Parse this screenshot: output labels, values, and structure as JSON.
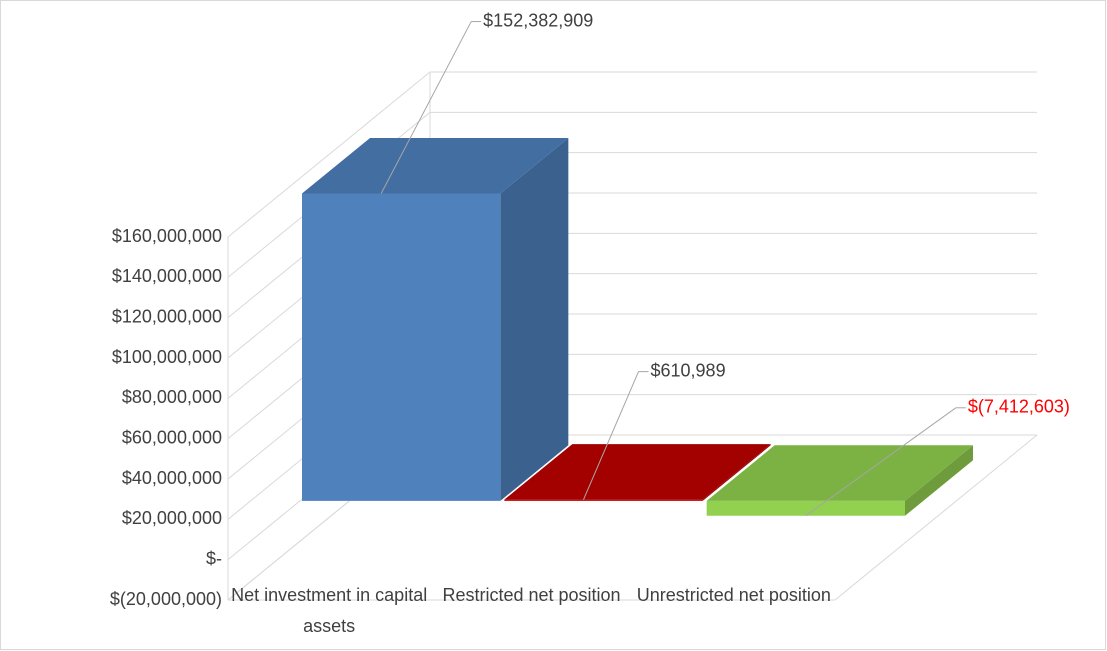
{
  "chart_data": {
    "type": "bar3d",
    "categories": [
      "Net investment in capital assets",
      "Restricted net position",
      "Unrestricted net position"
    ],
    "series": [
      {
        "name": null,
        "values": [
          152382909,
          610989,
          -7412603
        ],
        "value_labels": [
          "$152,382,909",
          "$610,989",
          "$(7,412,603)"
        ],
        "colors": [
          "#4f81bd",
          "#c00000",
          "#92d050"
        ]
      }
    ],
    "negative_label_color": "#ff0000",
    "ylim": [
      -20000000,
      160000000
    ],
    "yticks": [
      {
        "value": -20000000,
        "label": "$(20,000,000)"
      },
      {
        "value": 0,
        "label": "$-"
      },
      {
        "value": 20000000,
        "label": "$20,000,000"
      },
      {
        "value": 40000000,
        "label": "$40,000,000"
      },
      {
        "value": 60000000,
        "label": "$60,000,000"
      },
      {
        "value": 80000000,
        "label": "$80,000,000"
      },
      {
        "value": 100000000,
        "label": "$100,000,000"
      },
      {
        "value": 120000000,
        "label": "$120,000,000"
      },
      {
        "value": 140000000,
        "label": "$140,000,000"
      },
      {
        "value": 160000000,
        "label": "$160,000,000"
      }
    ],
    "grid": true
  }
}
